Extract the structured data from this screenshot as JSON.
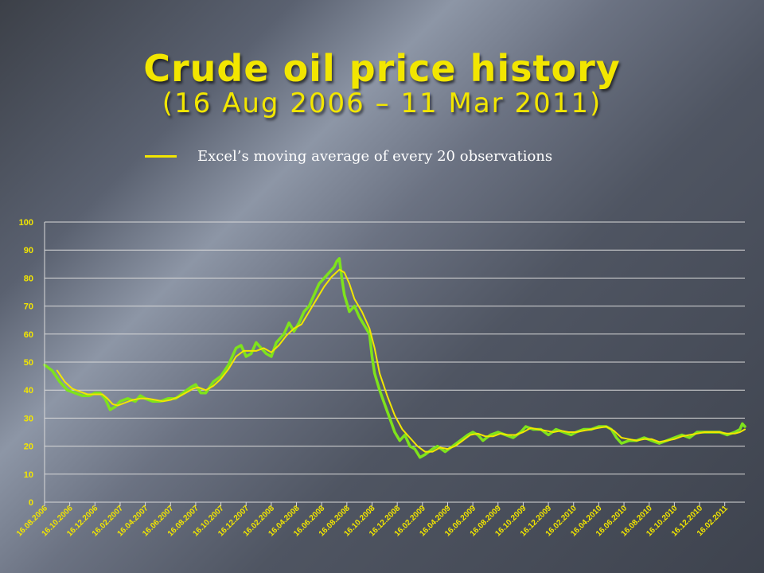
{
  "slide": {
    "title": "Crude oil price history",
    "subtitle": "(16 Aug 2006 – 11 Mar 2011)",
    "legend_label": "Excel’s moving average of every 20 observations"
  },
  "colors": {
    "price_series": "#7ee31c",
    "moving_average": "#f2e600",
    "gridline": "#d9d9d9",
    "tick_label": "#f2e600",
    "title": "#f2e600"
  },
  "chart_data": {
    "type": "line",
    "title": "Crude oil price history (16 Aug 2006 – 11 Mar 2011)",
    "xlabel": "",
    "ylabel": "",
    "ylim": [
      0,
      100
    ],
    "yticks": [
      0,
      10,
      20,
      30,
      40,
      50,
      60,
      70,
      80,
      90,
      100
    ],
    "grid": true,
    "legend_position": "top-left",
    "x_tick_labels": [
      "16.08.2006",
      "16.10.2006",
      "16.12.2006",
      "16.02.2007",
      "16.04.2007",
      "16.06.2007",
      "16.08.2007",
      "16.10.2007",
      "16.12.2007",
      "16.02.2008",
      "16.04.2008",
      "16.06.2008",
      "16.08.2008",
      "16.10.2008",
      "16.12.2008",
      "16.02.2009",
      "16.04.2009",
      "16.06.2009",
      "16.08.2009",
      "16.10.2009",
      "16.12.2009",
      "16.02.2010",
      "16.04.2010",
      "16.06.2010",
      "16.08.2010",
      "16.10.2010",
      "16.12.2010",
      "16.02.2011"
    ],
    "x_range": [
      0,
      27.8
    ],
    "series": [
      {
        "name": "",
        "color": "#7ee31c",
        "points": [
          [
            0,
            49
          ],
          [
            0.3,
            47
          ],
          [
            0.6,
            43
          ],
          [
            0.9,
            40
          ],
          [
            1.2,
            39
          ],
          [
            1.5,
            38
          ],
          [
            1.8,
            38
          ],
          [
            2.0,
            39
          ],
          [
            2.2,
            39
          ],
          [
            2.4,
            37
          ],
          [
            2.6,
            33
          ],
          [
            2.8,
            34
          ],
          [
            3.0,
            36
          ],
          [
            3.3,
            37
          ],
          [
            3.6,
            36
          ],
          [
            3.8,
            38
          ],
          [
            4.0,
            37
          ],
          [
            4.3,
            36
          ],
          [
            4.6,
            36
          ],
          [
            4.9,
            37
          ],
          [
            5.2,
            37
          ],
          [
            5.5,
            39
          ],
          [
            5.8,
            41
          ],
          [
            6.0,
            42
          ],
          [
            6.2,
            39
          ],
          [
            6.4,
            39
          ],
          [
            6.7,
            43
          ],
          [
            7.0,
            45
          ],
          [
            7.3,
            49
          ],
          [
            7.6,
            55
          ],
          [
            7.8,
            56
          ],
          [
            8.0,
            52
          ],
          [
            8.2,
            53
          ],
          [
            8.4,
            57
          ],
          [
            8.6,
            55
          ],
          [
            8.8,
            53
          ],
          [
            9.0,
            52
          ],
          [
            9.2,
            57
          ],
          [
            9.5,
            60
          ],
          [
            9.7,
            64
          ],
          [
            9.9,
            61
          ],
          [
            10.1,
            64
          ],
          [
            10.3,
            68
          ],
          [
            10.5,
            70
          ],
          [
            10.7,
            74
          ],
          [
            10.9,
            78
          ],
          [
            11.1,
            80
          ],
          [
            11.3,
            82
          ],
          [
            11.5,
            84
          ],
          [
            11.6,
            86
          ],
          [
            11.7,
            87
          ],
          [
            11.8,
            80
          ],
          [
            11.9,
            74
          ],
          [
            12.0,
            71
          ],
          [
            12.1,
            68
          ],
          [
            12.3,
            70
          ],
          [
            12.5,
            66
          ],
          [
            12.7,
            63
          ],
          [
            12.9,
            60
          ],
          [
            13.0,
            52
          ],
          [
            13.1,
            46
          ],
          [
            13.3,
            40
          ],
          [
            13.5,
            35
          ],
          [
            13.7,
            30
          ],
          [
            13.9,
            25
          ],
          [
            14.1,
            22
          ],
          [
            14.3,
            24
          ],
          [
            14.5,
            20
          ],
          [
            14.7,
            19
          ],
          [
            14.9,
            16
          ],
          [
            15.1,
            17
          ],
          [
            15.4,
            19
          ],
          [
            15.6,
            20
          ],
          [
            15.9,
            18
          ],
          [
            16.2,
            20
          ],
          [
            16.5,
            22
          ],
          [
            16.8,
            24
          ],
          [
            17.0,
            25
          ],
          [
            17.2,
            24
          ],
          [
            17.4,
            22
          ],
          [
            17.7,
            24
          ],
          [
            18.0,
            25
          ],
          [
            18.3,
            24
          ],
          [
            18.6,
            23
          ],
          [
            18.9,
            25
          ],
          [
            19.1,
            27
          ],
          [
            19.4,
            26
          ],
          [
            19.7,
            26
          ],
          [
            20.0,
            24
          ],
          [
            20.3,
            26
          ],
          [
            20.6,
            25
          ],
          [
            20.9,
            24
          ],
          [
            21.1,
            25
          ],
          [
            21.4,
            26
          ],
          [
            21.7,
            26
          ],
          [
            22.0,
            27
          ],
          [
            22.3,
            27
          ],
          [
            22.5,
            26
          ],
          [
            22.7,
            23
          ],
          [
            22.9,
            21
          ],
          [
            23.2,
            22
          ],
          [
            23.5,
            22
          ],
          [
            23.8,
            23
          ],
          [
            24.1,
            22
          ],
          [
            24.4,
            21
          ],
          [
            24.7,
            22
          ],
          [
            25.0,
            23
          ],
          [
            25.3,
            24
          ],
          [
            25.6,
            23
          ],
          [
            25.9,
            25
          ],
          [
            26.2,
            25
          ],
          [
            26.5,
            25
          ],
          [
            26.8,
            25
          ],
          [
            27.1,
            24
          ],
          [
            27.4,
            25
          ],
          [
            27.6,
            26
          ],
          [
            27.7,
            28
          ],
          [
            27.8,
            27
          ]
        ]
      },
      {
        "name": "Excel’s moving average of every 20 observations",
        "color": "#f2e600",
        "points": [
          [
            0.5,
            47
          ],
          [
            0.8,
            43
          ],
          [
            1.1,
            40.5
          ],
          [
            1.4,
            39.5
          ],
          [
            1.7,
            38.5
          ],
          [
            2.0,
            38.5
          ],
          [
            2.3,
            38.5
          ],
          [
            2.5,
            37
          ],
          [
            2.7,
            35
          ],
          [
            2.9,
            34.5
          ],
          [
            3.2,
            35.5
          ],
          [
            3.5,
            36.5
          ],
          [
            3.8,
            37
          ],
          [
            4.1,
            37
          ],
          [
            4.4,
            36.5
          ],
          [
            4.7,
            36
          ],
          [
            5.0,
            36.5
          ],
          [
            5.3,
            37.5
          ],
          [
            5.6,
            39
          ],
          [
            5.9,
            40.5
          ],
          [
            6.1,
            41
          ],
          [
            6.4,
            40
          ],
          [
            6.7,
            41.5
          ],
          [
            7.0,
            44
          ],
          [
            7.3,
            47.5
          ],
          [
            7.6,
            52
          ],
          [
            7.9,
            54
          ],
          [
            8.1,
            54
          ],
          [
            8.4,
            54
          ],
          [
            8.7,
            55
          ],
          [
            9.0,
            53.5
          ],
          [
            9.3,
            56
          ],
          [
            9.6,
            59.5
          ],
          [
            9.9,
            62
          ],
          [
            10.2,
            63.5
          ],
          [
            10.5,
            68
          ],
          [
            10.8,
            72.5
          ],
          [
            11.1,
            77
          ],
          [
            11.4,
            80.5
          ],
          [
            11.7,
            83
          ],
          [
            11.9,
            82
          ],
          [
            12.1,
            78
          ],
          [
            12.3,
            72.5
          ],
          [
            12.6,
            68
          ],
          [
            12.9,
            62
          ],
          [
            13.1,
            55
          ],
          [
            13.3,
            46
          ],
          [
            13.6,
            38
          ],
          [
            13.9,
            31
          ],
          [
            14.2,
            26
          ],
          [
            14.5,
            23
          ],
          [
            14.8,
            20
          ],
          [
            15.1,
            18
          ],
          [
            15.4,
            18
          ],
          [
            15.7,
            19.5
          ],
          [
            16.0,
            19
          ],
          [
            16.3,
            20
          ],
          [
            16.6,
            22
          ],
          [
            16.9,
            24
          ],
          [
            17.2,
            24.5
          ],
          [
            17.5,
            23.5
          ],
          [
            17.8,
            23.5
          ],
          [
            18.1,
            24.5
          ],
          [
            18.4,
            24
          ],
          [
            18.7,
            24
          ],
          [
            19.0,
            25
          ],
          [
            19.3,
            26.5
          ],
          [
            19.6,
            26
          ],
          [
            19.9,
            25.5
          ],
          [
            20.2,
            25
          ],
          [
            20.5,
            25.5
          ],
          [
            20.8,
            25
          ],
          [
            21.1,
            25
          ],
          [
            21.4,
            25.5
          ],
          [
            21.7,
            26
          ],
          [
            22.0,
            26.5
          ],
          [
            22.3,
            27
          ],
          [
            22.6,
            25.5
          ],
          [
            22.9,
            23
          ],
          [
            23.2,
            22.5
          ],
          [
            23.5,
            22
          ],
          [
            23.8,
            22.5
          ],
          [
            24.1,
            22.5
          ],
          [
            24.4,
            21.5
          ],
          [
            24.7,
            22
          ],
          [
            25.0,
            22.5
          ],
          [
            25.3,
            23.5
          ],
          [
            25.6,
            24
          ],
          [
            25.9,
            24.5
          ],
          [
            26.2,
            25
          ],
          [
            26.5,
            25
          ],
          [
            26.8,
            25
          ],
          [
            27.1,
            24.5
          ],
          [
            27.4,
            24.5
          ],
          [
            27.6,
            25
          ],
          [
            27.8,
            26
          ]
        ]
      }
    ]
  }
}
